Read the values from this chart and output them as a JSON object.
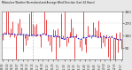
{
  "title": "Milwaukee Weather Normalized and Average Wind Direction (Last 24 Hours)",
  "background_color": "#e8e8e8",
  "plot_bg_color": "#ffffff",
  "n_points": 72,
  "ylim": [
    0,
    360
  ],
  "yticks": [
    90,
    180,
    270,
    360
  ],
  "grid_color": "#cccccc",
  "bar_color": "#dd0000",
  "line_color": "#0000cc",
  "vline_color": "#bbbbbb",
  "seed": 7
}
